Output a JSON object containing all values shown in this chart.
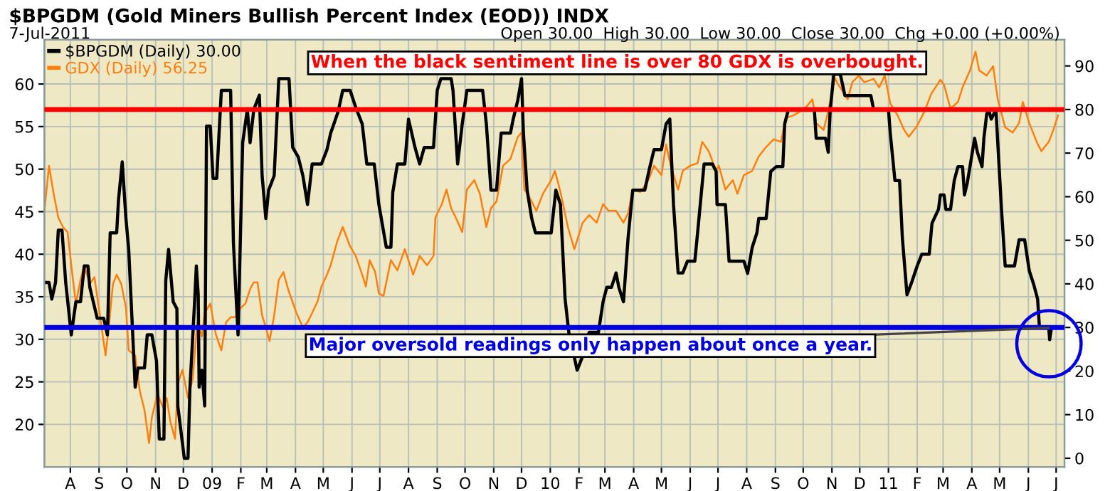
{
  "chart_data": {
    "type": "line",
    "title": "$BPGDM (Gold Miners Bullish Percent Index (EOD)) INDX",
    "subtitle": "7-Jul-2011",
    "annotations": [
      "Open 30.00  High 30.00  Low 30.00  Close 30.00  Chg +0.00 (+0.00%)",
      "When the black sentiment line is over 80 GDX is overbought.",
      {
        "text": "Major oversold readings only happen about once a year.",
        "x": "2011-06-23",
        "y": 29.9
      }
    ],
    "legend": "top left",
    "grid": true,
    "xlim": [
      "2008-07-04",
      "2011-07-10"
    ],
    "xticks": [
      {
        "value": "2008-08-01",
        "label": "A"
      },
      {
        "value": "2008-09-01",
        "label": "S"
      },
      {
        "value": "2008-10-01",
        "label": "O"
      },
      {
        "value": "2008-11-01",
        "label": "N"
      },
      {
        "value": "2008-12-01",
        "label": "D"
      },
      {
        "value": "2009-01-01",
        "label": "09"
      },
      {
        "value": "2009-02-01",
        "label": "F"
      },
      {
        "value": "2009-03-01",
        "label": "M"
      },
      {
        "value": "2009-04-01",
        "label": "A"
      },
      {
        "value": "2009-05-01",
        "label": "M"
      },
      {
        "value": "2009-06-01",
        "label": "J"
      },
      {
        "value": "2009-07-01",
        "label": "J"
      },
      {
        "value": "2009-08-01",
        "label": "A"
      },
      {
        "value": "2009-09-01",
        "label": "S"
      },
      {
        "value": "2009-10-01",
        "label": "O"
      },
      {
        "value": "2009-11-01",
        "label": "N"
      },
      {
        "value": "2009-12-01",
        "label": "D"
      },
      {
        "value": "2010-01-01",
        "label": "10"
      },
      {
        "value": "2010-02-01",
        "label": "F"
      },
      {
        "value": "2010-03-01",
        "label": "M"
      },
      {
        "value": "2010-04-01",
        "label": "A"
      },
      {
        "value": "2010-05-01",
        "label": "M"
      },
      {
        "value": "2010-06-01",
        "label": "J"
      },
      {
        "value": "2010-07-01",
        "label": "J"
      },
      {
        "value": "2010-08-01",
        "label": "A"
      },
      {
        "value": "2010-09-01",
        "label": "S"
      },
      {
        "value": "2010-10-01",
        "label": "O"
      },
      {
        "value": "2010-11-01",
        "label": "N"
      },
      {
        "value": "2010-12-01",
        "label": "D"
      },
      {
        "value": "2011-01-01",
        "label": "11"
      },
      {
        "value": "2011-02-01",
        "label": "F"
      },
      {
        "value": "2011-03-01",
        "label": "M"
      },
      {
        "value": "2011-04-01",
        "label": "A"
      },
      {
        "value": "2011-05-01",
        "label": "M"
      },
      {
        "value": "2011-06-01",
        "label": "J"
      },
      {
        "value": "2011-07-01",
        "label": "J"
      }
    ],
    "ylim": [
      15,
      65.2
    ],
    "yticks": [
      20,
      25,
      30,
      35,
      40,
      45,
      50,
      55,
      60
    ],
    "y2lim": [
      -2,
      96
    ],
    "y2ticks": [
      0,
      10,
      20,
      30,
      40,
      50,
      60,
      70,
      80,
      90
    ],
    "ref_lines": [
      {
        "axis": "y2",
        "value": 80,
        "color": "#ff0000"
      },
      {
        "axis": "y2",
        "value": 30,
        "color": "#0000e0"
      }
    ],
    "series": [
      {
        "name": "$BPGDM (Daily) 30.00",
        "color": "#000000",
        "axis": "y2",
        "x": [
          "2008-07-04",
          "2008-07-09",
          "2008-07-12",
          "2008-07-16",
          "2008-07-19",
          "2008-07-23",
          "2008-07-27",
          "2008-08-02",
          "2008-08-07",
          "2008-08-12",
          "2008-08-16",
          "2008-08-20",
          "2008-08-22",
          "2008-08-30",
          "2008-09-06",
          "2008-09-10",
          "2008-09-13",
          "2008-09-20",
          "2008-09-22",
          "2008-09-26",
          "2008-09-30",
          "2008-10-03",
          "2008-10-10",
          "2008-10-13",
          "2008-10-20",
          "2008-10-23",
          "2008-10-28",
          "2008-11-02",
          "2008-11-05",
          "2008-11-10",
          "2008-11-12",
          "2008-11-15",
          "2008-11-20",
          "2008-11-24",
          "2008-11-25",
          "2008-12-02",
          "2008-12-06",
          "2008-12-08",
          "2008-12-13",
          "2008-12-15",
          "2008-12-17",
          "2008-12-18",
          "2008-12-21",
          "2008-12-24",
          "2008-12-26",
          "2008-12-30",
          "2009-01-02",
          "2009-01-06",
          "2009-01-08",
          "2009-01-11",
          "2009-01-21",
          "2009-01-24",
          "2009-01-29",
          "2009-02-03",
          "2009-02-08",
          "2009-02-11",
          "2009-02-15",
          "2009-02-21",
          "2009-02-24",
          "2009-02-28",
          "2009-03-03",
          "2009-03-09",
          "2009-03-14",
          "2009-03-25",
          "2009-03-29",
          "2009-04-04",
          "2009-04-09",
          "2009-04-14",
          "2009-04-19",
          "2009-04-29",
          "2009-05-05",
          "2009-05-09",
          "2009-05-17",
          "2009-05-22",
          "2009-05-30",
          "2009-06-05",
          "2009-06-12",
          "2009-06-17",
          "2009-06-25",
          "2009-06-30",
          "2009-07-08",
          "2009-07-13",
          "2009-07-15",
          "2009-07-20",
          "2009-07-28",
          "2009-08-01",
          "2009-08-08",
          "2009-08-13",
          "2009-08-18",
          "2009-08-28",
          "2009-09-01",
          "2009-09-05",
          "2009-09-16",
          "2009-09-18",
          "2009-09-23",
          "2009-09-28",
          "2009-10-03",
          "2009-10-20",
          "2009-10-24",
          "2009-10-29",
          "2009-11-04",
          "2009-11-09",
          "2009-11-19",
          "2009-11-22",
          "2009-11-27",
          "2009-12-01",
          "2009-12-03",
          "2009-12-07",
          "2009-12-12",
          "2009-12-16",
          "2010-01-02",
          "2010-01-07",
          "2010-01-12",
          "2010-01-17",
          "2010-01-21",
          "2010-01-30",
          "2010-02-05",
          "2010-02-12",
          "2010-02-22",
          "2010-02-27",
          "2010-03-03",
          "2010-03-08",
          "2010-03-13",
          "2010-03-16",
          "2010-03-21",
          "2010-03-26",
          "2010-03-31",
          "2010-04-13",
          "2010-04-18",
          "2010-04-23",
          "2010-05-01",
          "2010-05-06",
          "2010-05-10",
          "2010-05-14",
          "2010-05-19",
          "2010-05-24",
          "2010-05-29",
          "2010-06-06",
          "2010-06-09",
          "2010-06-16",
          "2010-06-25",
          "2010-06-29",
          "2010-06-30",
          "2010-07-09",
          "2010-07-13",
          "2010-07-29",
          "2010-08-02",
          "2010-08-07",
          "2010-08-12",
          "2010-08-14",
          "2010-08-22",
          "2010-08-27",
          "2010-09-02",
          "2010-09-09",
          "2010-09-11",
          "2010-09-15",
          "2010-10-13",
          "2010-10-15",
          "2010-10-25",
          "2010-10-28",
          "2010-10-30",
          "2010-11-03",
          "2010-11-10",
          "2010-11-15",
          "2010-12-13",
          "2010-12-16",
          "2011-01-01",
          "2011-01-03",
          "2011-01-08",
          "2011-01-13",
          "2011-01-16",
          "2011-01-21",
          "2011-01-26",
          "2011-02-01",
          "2011-02-06",
          "2011-02-14",
          "2011-02-17",
          "2011-02-24",
          "2011-02-26",
          "2011-03-02",
          "2011-03-04",
          "2011-03-09",
          "2011-03-13",
          "2011-03-17",
          "2011-03-22",
          "2011-03-24",
          "2011-03-27",
          "2011-03-30",
          "2011-04-04",
          "2011-04-07",
          "2011-04-12",
          "2011-04-14",
          "2011-04-17",
          "2011-04-19",
          "2011-04-22",
          "2011-04-27",
          "2011-05-03",
          "2011-05-07",
          "2011-05-17",
          "2011-05-22",
          "2011-05-28",
          "2011-06-02",
          "2011-06-07",
          "2011-06-11",
          "2011-06-13",
          "2011-06-23",
          "2011-06-24",
          "2011-06-26"
        ],
        "values": [
          40.3,
          40.3,
          36.5,
          40.3,
          52.3,
          52.3,
          40.3,
          28.3,
          35.9,
          35.9,
          44.1,
          44.1,
          39.2,
          32.1,
          32.1,
          28.3,
          51.7,
          51.7,
          59.3,
          68,
          55,
          47.9,
          16.3,
          20.7,
          20.7,
          28.3,
          28.3,
          22.3,
          4.4,
          4.4,
          40.8,
          47.9,
          35.9,
          34.3,
          12,
          0,
          0,
          15.8,
          35.4,
          44.1,
          37.6,
          16.3,
          20.2,
          12,
          76.2,
          76.2,
          64.2,
          64.2,
          72.4,
          84.4,
          84.4,
          49.5,
          28.3,
          72.4,
          80,
          72.4,
          80,
          83.3,
          64.8,
          55,
          61.5,
          64.8,
          87.1,
          87.1,
          71.3,
          69.1,
          64.8,
          58.2,
          67.5,
          67.5,
          70.8,
          74.6,
          79.5,
          84.4,
          84.4,
          80.5,
          76.7,
          67.5,
          67.5,
          58.2,
          48.4,
          48.4,
          61,
          67.5,
          67.5,
          77.8,
          71.3,
          67.5,
          71.3,
          71.3,
          84.4,
          87.1,
          87.1,
          84.4,
          67.5,
          76.7,
          84.4,
          84.4,
          76.7,
          61.5,
          61.5,
          74.6,
          74.6,
          77.8,
          82.2,
          87.1,
          74.6,
          61.5,
          55,
          51.7,
          51.7,
          61.5,
          58.2,
          36.5,
          28.9,
          20.2,
          23.4,
          28.9,
          28.9,
          35.9,
          39.2,
          39.2,
          42.5,
          39.2,
          35.9,
          50.6,
          61.5,
          61.5,
          66.4,
          70.8,
          70.8,
          76.7,
          77.8,
          58.2,
          42.5,
          42.5,
          45.2,
          45.2,
          51.7,
          67.5,
          67.5,
          65.8,
          58.2,
          58.2,
          45.2,
          45.2,
          42.4,
          48.4,
          51.7,
          55,
          55,
          65.8,
          66.9,
          66.9,
          76.7,
          80,
          80,
          73.4,
          73.4,
          70.2,
          79.4,
          88.1,
          88.1,
          83.2,
          83.2,
          80,
          80,
          74.5,
          63.7,
          63.7,
          50.6,
          37.5,
          40.3,
          44.1,
          46.8,
          46.8,
          53.9,
          57.1,
          60.4,
          60.4,
          57.1,
          57.1,
          63.7,
          66.9,
          66.9,
          60.4,
          63.1,
          66.9,
          73.4,
          70.2,
          66.9,
          73.4,
          78.9,
          80,
          77.8,
          80,
          57.1,
          44.1,
          44.1,
          50.1,
          50.1,
          43,
          39.7,
          36.5,
          29.9,
          29.9,
          27.2,
          30
        ]
      },
      {
        "name": "GDX (Daily) 56.25",
        "color": "#ff7f0e",
        "axis": "y",
        "x": [
          "2008-07-04",
          "2008-07-09",
          "2008-07-14",
          "2008-07-19",
          "2008-07-24",
          "2008-07-29",
          "2008-08-02",
          "2008-08-07",
          "2008-08-12",
          "2008-08-16",
          "2008-08-22",
          "2008-08-27",
          "2008-09-03",
          "2008-09-08",
          "2008-09-12",
          "2008-09-16",
          "2008-09-20",
          "2008-09-25",
          "2008-09-30",
          "2008-10-03",
          "2008-10-10",
          "2008-10-15",
          "2008-10-20",
          "2008-10-25",
          "2008-10-28",
          "2008-11-03",
          "2008-11-09",
          "2008-11-13",
          "2008-11-17",
          "2008-11-22",
          "2008-11-25",
          "2008-11-30",
          "2008-12-06",
          "2008-12-11",
          "2008-12-16",
          "2008-12-21",
          "2008-12-24",
          "2008-12-30",
          "2009-01-05",
          "2009-01-11",
          "2009-01-16",
          "2009-01-21",
          "2009-01-26",
          "2009-02-01",
          "2009-02-06",
          "2009-02-11",
          "2009-02-15",
          "2009-02-19",
          "2009-02-24",
          "2009-02-28",
          "2009-03-04",
          "2009-03-09",
          "2009-03-14",
          "2009-03-19",
          "2009-03-24",
          "2009-04-02",
          "2009-04-09",
          "2009-04-14",
          "2009-04-19",
          "2009-04-25",
          "2009-04-29",
          "2009-05-05",
          "2009-05-09",
          "2009-05-16",
          "2009-05-22",
          "2009-05-30",
          "2009-06-05",
          "2009-06-12",
          "2009-06-16",
          "2009-06-20",
          "2009-06-26",
          "2009-06-30",
          "2009-07-05",
          "2009-07-13",
          "2009-07-20",
          "2009-07-28",
          "2009-08-06",
          "2009-08-13",
          "2009-08-21",
          "2009-08-28",
          "2009-08-30",
          "2009-09-06",
          "2009-09-11",
          "2009-09-16",
          "2009-09-21",
          "2009-09-28",
          "2009-10-03",
          "2009-10-11",
          "2009-10-17",
          "2009-10-24",
          "2009-10-29",
          "2009-11-04",
          "2009-11-11",
          "2009-11-19",
          "2009-11-27",
          "2009-12-01",
          "2009-12-04",
          "2009-12-09",
          "2009-12-17",
          "2009-12-24",
          "2010-01-02",
          "2010-01-06",
          "2010-01-12",
          "2010-01-20",
          "2010-01-27",
          "2010-02-05",
          "2010-02-12",
          "2010-02-20",
          "2010-02-27",
          "2010-03-05",
          "2010-03-13",
          "2010-03-21",
          "2010-03-26",
          "2010-03-31",
          "2010-04-08",
          "2010-04-16",
          "2010-04-23",
          "2010-05-01",
          "2010-05-06",
          "2010-05-11",
          "2010-05-19",
          "2010-05-24",
          "2010-06-01",
          "2010-06-09",
          "2010-06-14",
          "2010-06-21",
          "2010-06-29",
          "2010-07-02",
          "2010-07-09",
          "2010-07-17",
          "2010-07-22",
          "2010-07-29",
          "2010-08-07",
          "2010-08-14",
          "2010-08-22",
          "2010-08-30",
          "2010-09-07",
          "2010-09-12",
          "2010-09-20",
          "2010-09-28",
          "2010-10-05",
          "2010-10-11",
          "2010-10-15",
          "2010-10-23",
          "2010-10-28",
          "2010-11-04",
          "2010-11-08",
          "2010-11-13",
          "2010-11-18",
          "2010-11-23",
          "2010-11-30",
          "2010-12-06",
          "2010-12-16",
          "2010-12-22",
          "2010-12-28",
          "2011-01-03",
          "2011-01-11",
          "2011-01-18",
          "2011-01-23",
          "2011-02-01",
          "2011-02-09",
          "2011-02-16",
          "2011-02-26",
          "2011-03-02",
          "2011-03-09",
          "2011-03-17",
          "2011-03-22",
          "2011-03-30",
          "2011-04-05",
          "2011-04-09",
          "2011-04-17",
          "2011-04-24",
          "2011-04-29",
          "2011-05-07",
          "2011-05-15",
          "2011-05-22",
          "2011-05-26",
          "2011-06-02",
          "2011-06-10",
          "2011-06-15",
          "2011-06-23",
          "2011-06-28",
          "2011-07-03"
        ],
        "values": [
          45.1,
          50.4,
          47.1,
          44.3,
          43.2,
          42.6,
          38.7,
          34.2,
          37,
          38.7,
          36.5,
          37.3,
          32,
          28.1,
          32,
          36.5,
          37.6,
          36.5,
          33.7,
          28.7,
          28.1,
          23.9,
          21.7,
          17.8,
          20.8,
          23.6,
          22,
          23.1,
          20.3,
          18.3,
          24.8,
          26.4,
          23.1,
          25.3,
          32,
          30.3,
          33.1,
          34.2,
          30.6,
          28.7,
          32,
          32.6,
          32.6,
          33.7,
          34.2,
          35.9,
          36.7,
          36.7,
          32.8,
          31.4,
          29.8,
          32.8,
          37,
          37.9,
          35.9,
          33.1,
          31.4,
          32,
          33.1,
          34.5,
          36.2,
          37.6,
          38.7,
          41.5,
          43.2,
          40.9,
          39.8,
          37.6,
          36.2,
          39.3,
          37.9,
          35.4,
          35.1,
          39.3,
          38.1,
          40.6,
          37.6,
          39.8,
          38.7,
          39.8,
          44.3,
          45.9,
          47.6,
          45.4,
          44.3,
          42.6,
          47.6,
          48.7,
          47.1,
          43.2,
          45.4,
          46.2,
          50.4,
          51.2,
          53.8,
          54.3,
          47.6,
          46.8,
          45.1,
          47.1,
          48.7,
          49.8,
          47.3,
          43.2,
          40.6,
          43.7,
          44.6,
          43.7,
          45.9,
          45.1,
          45.1,
          43.7,
          44.8,
          47.6,
          47.3,
          48.5,
          50.4,
          49.3,
          52.9,
          50.4,
          47.6,
          49.8,
          50.4,
          50.7,
          53.2,
          52.1,
          49.8,
          50.4,
          47.6,
          48.7,
          47.1,
          49.3,
          49.8,
          51.5,
          52.6,
          53.5,
          53.2,
          56,
          56.3,
          56.8,
          57.4,
          58.2,
          55.4,
          54.6,
          56.8,
          60.7,
          59.9,
          59.1,
          58.2,
          60.2,
          61,
          60.2,
          60.6,
          59.6,
          61,
          57.7,
          56.3,
          54.6,
          53.8,
          55.1,
          56.8,
          58.8,
          60.5,
          59.9,
          57.1,
          57.9,
          59.6,
          61.6,
          63.8,
          61.6,
          61,
          62.1,
          58.2,
          54.9,
          54.3,
          55.4,
          57.9,
          55.4,
          53.2,
          52.1,
          53.2,
          54.6,
          56.3
        ]
      }
    ]
  }
}
